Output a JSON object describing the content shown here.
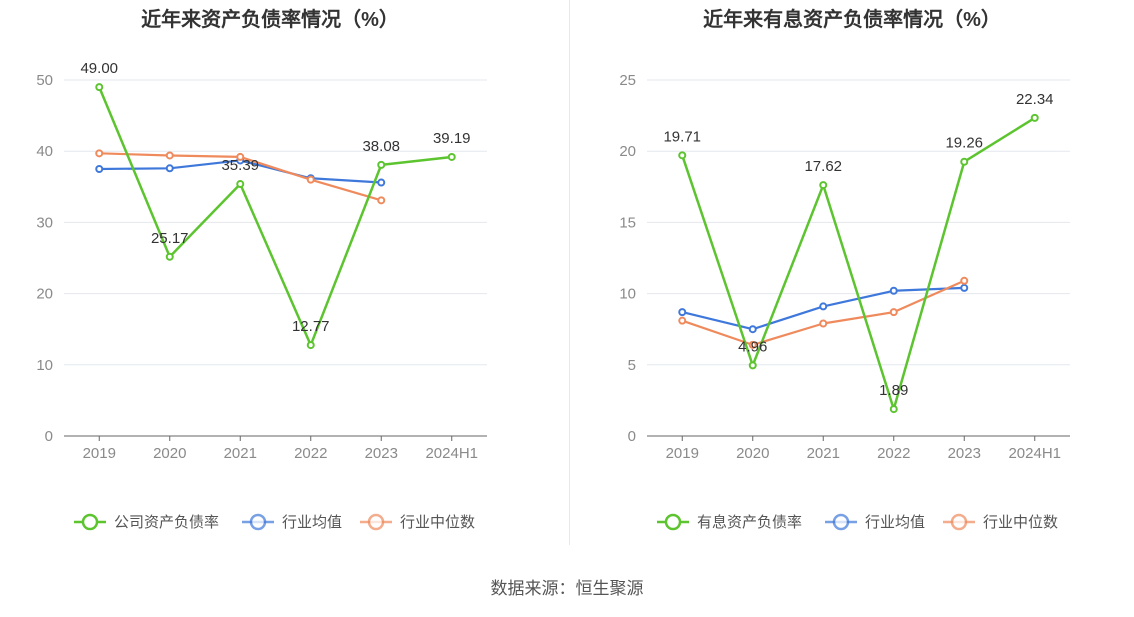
{
  "colors": {
    "main": "#5cc42f",
    "avg": "#3f78db",
    "median": "#ef8a5c",
    "grid": "#e4e7ee",
    "axis": "#666666",
    "tick": "#8a8a8a",
    "title": "#333333",
    "label": "#333333"
  },
  "source": "数据来源：恒生聚源",
  "chart_data": [
    {
      "type": "line",
      "title": "近年来资产负债率情况（%）",
      "categories": [
        "2019",
        "2020",
        "2021",
        "2022",
        "2023",
        "2024H1"
      ],
      "ylim": [
        0,
        50
      ],
      "yticks": [
        "0",
        "10",
        "20",
        "30",
        "40",
        "50"
      ],
      "grid": true,
      "legend_position": "bottom",
      "series": [
        {
          "name": "公司资产负债率",
          "role": "main",
          "values": [
            49.0,
            25.17,
            35.39,
            12.77,
            38.08,
            39.19
          ],
          "labels": [
            "49.00",
            "25.17",
            "35.39",
            "12.77",
            "38.08",
            "39.19"
          ]
        },
        {
          "name": "行业均值",
          "role": "avg",
          "values": [
            37.5,
            37.6,
            38.7,
            36.2,
            35.6,
            null
          ]
        },
        {
          "name": "行业中位数",
          "role": "median",
          "values": [
            39.7,
            39.4,
            39.2,
            36.0,
            33.1,
            null
          ]
        }
      ]
    },
    {
      "type": "line",
      "title": "近年来有息资产负债率情况（%）",
      "categories": [
        "2019",
        "2020",
        "2021",
        "2022",
        "2023",
        "2024H1"
      ],
      "ylim": [
        0,
        25
      ],
      "yticks": [
        "0",
        "5",
        "10",
        "15",
        "20",
        "25"
      ],
      "grid": true,
      "legend_position": "bottom",
      "series": [
        {
          "name": "有息资产负债率",
          "role": "main",
          "values": [
            19.71,
            4.96,
            17.62,
            1.89,
            19.26,
            22.34
          ],
          "labels": [
            "19.71",
            "4.96",
            "17.62",
            "1.89",
            "19.26",
            "22.34"
          ]
        },
        {
          "name": "行业均值",
          "role": "avg",
          "values": [
            8.7,
            7.5,
            9.1,
            10.2,
            10.4,
            null
          ]
        },
        {
          "name": "行业中位数",
          "role": "median",
          "values": [
            8.1,
            6.4,
            7.9,
            8.7,
            10.9,
            null
          ]
        }
      ]
    }
  ]
}
